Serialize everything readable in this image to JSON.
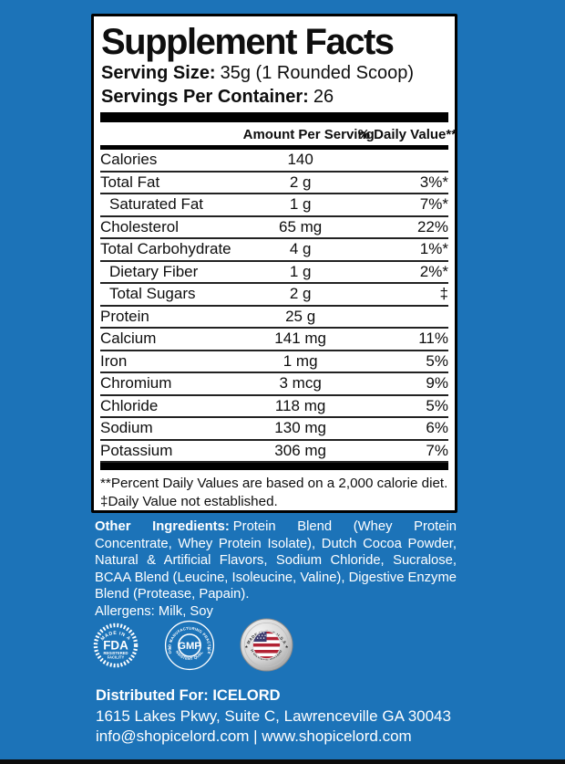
{
  "colors": {
    "background_blue": "#1c73b8",
    "panel_bg": "#ffffff",
    "panel_border": "#000000",
    "text_dark": "#0e0e0e",
    "text_light": "#ffffff",
    "flag_red": "#b22234",
    "flag_blue": "#3c3b6e",
    "badge_silver": "#c9c9c9"
  },
  "panel": {
    "title": "Supplement Facts",
    "serving_size_label": "Serving Size:",
    "serving_size_value": "35g (1 Rounded Scoop)",
    "servings_label": "Servings Per Container:",
    "servings_value": "26",
    "columns": {
      "amount": "Amount Per Serving",
      "dv": "% Daily Value**"
    },
    "rows": [
      {
        "name": "Calories",
        "amount": "140",
        "dv": "",
        "indent": false
      },
      {
        "name": "Total Fat",
        "amount": "2 g",
        "dv": "3%*",
        "indent": false
      },
      {
        "name": "Saturated Fat",
        "amount": "1 g",
        "dv": "7%*",
        "indent": true
      },
      {
        "name": "Cholesterol",
        "amount": "65 mg",
        "dv": "22%",
        "indent": false
      },
      {
        "name": "Total Carbohydrate",
        "amount": "4 g",
        "dv": "1%*",
        "indent": false
      },
      {
        "name": "Dietary Fiber",
        "amount": "1 g",
        "dv": "2%*",
        "indent": true
      },
      {
        "name": "Total Sugars",
        "amount": "2 g",
        "dv": "‡",
        "indent": true
      },
      {
        "name": "Protein",
        "amount": "25 g",
        "dv": "",
        "indent": false
      },
      {
        "name": "Calcium",
        "amount": "141 mg",
        "dv": "11%",
        "indent": false
      },
      {
        "name": "Iron",
        "amount": "1 mg",
        "dv": "5%",
        "indent": false
      },
      {
        "name": "Chromium",
        "amount": "3 mcg",
        "dv": "9%",
        "indent": false
      },
      {
        "name": "Chloride",
        "amount": "118 mg",
        "dv": "5%",
        "indent": false
      },
      {
        "name": "Sodium",
        "amount": "130 mg",
        "dv": "6%",
        "indent": false
      },
      {
        "name": "Potassium",
        "amount": "306 mg",
        "dv": "7%",
        "indent": false
      }
    ],
    "footnotes": [
      "**Percent Daily Values are based on a 2,000 calorie diet.",
      "‡Daily Value not established."
    ]
  },
  "other_ingredients": {
    "label": "Other Ingredients:",
    "text": "Protein Blend (Whey Protein Concentrate, Whey Protein Isolate), Dutch Cocoa Powder, Natural & Artificial Flavors, Sodium Chloride, Sucralose, BCAA Blend (Leucine, Isoleucine, Valine), Digestive Enzyme Blend (Protease, Papain).",
    "allergens": "Allergens: Milk, Soy"
  },
  "badges": {
    "star_separator": "★",
    "fda": {
      "top": "MADE IN A",
      "center": "FDA",
      "line1": "REGISTERED",
      "line2": "FACILITY"
    },
    "gmp": {
      "top": "GOOD MANUFACTURING PRACTICES",
      "center": "GMP",
      "bottom": "CONSISTENT QUALITY"
    },
    "usa": {
      "top": "MADE IN THE U.S.A",
      "bottom": "WITH GLOBAL MATERIALS"
    }
  },
  "footer": {
    "distributed": "Distributed For: ICELORD",
    "address": "1615 Lakes Pkwy, Suite C, Lawrenceville GA 30043",
    "contact": "info@shopicelord.com | www.shopicelord.com"
  }
}
